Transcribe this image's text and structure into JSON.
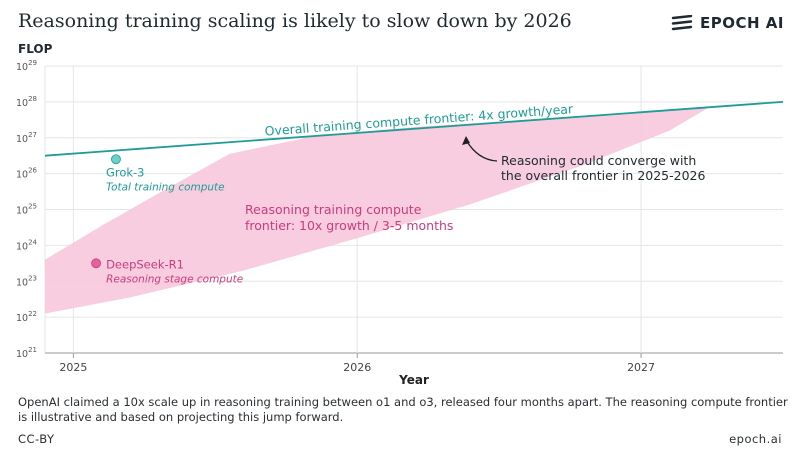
{
  "header": {
    "title": "Reasoning training scaling is likely to slow down by 2026",
    "logo_text": "EPOCH AI"
  },
  "footer": {
    "caption": "OpenAI claimed a 10x scale up in reasoning training between o1 and o3, released four months apart. The reasoning compute frontier is illustrative and based on projecting this jump forward.",
    "license": "CC-BY",
    "site": "epoch.ai"
  },
  "chart_data": {
    "type": "line",
    "title": "Reasoning training scaling is likely to slow down by 2026",
    "xlabel": "Year",
    "ylabel": "FLOP",
    "y_scale": "log",
    "x_range": [
      2024.9,
      2027.5
    ],
    "y_exp_range": [
      21,
      29
    ],
    "x_ticks": [
      2025,
      2026,
      2027
    ],
    "x_tick_labels": [
      "2025",
      "2026",
      "2027"
    ],
    "y_tick_exponents": [
      21,
      22,
      23,
      24,
      25,
      26,
      27,
      28,
      29
    ],
    "y_tick_base": "10",
    "grid": true,
    "colors": {
      "overall": "#1f9c97",
      "reasoning_fill": "#f7c8dc",
      "reasoning_text": "#c93d7d",
      "deepseek_point": "#e6619c",
      "grok_point": "#6ccfc8",
      "grid": "#e6e6e6",
      "axis": "#999999",
      "arrow": "#222222"
    },
    "overall_frontier": {
      "label": "Overall training compute frontier: 4x growth/year",
      "points": [
        [
          2024.9,
          26.5
        ],
        [
          2027.5,
          28.0
        ]
      ]
    },
    "reasoning_frontier": {
      "label_line1": "Reasoning training compute",
      "label_line2": "frontier: 10x growth / 3-5 months",
      "upper": [
        [
          2024.9,
          23.6
        ],
        [
          2025.1,
          24.55
        ],
        [
          2025.3,
          25.45
        ],
        [
          2025.55,
          26.55
        ],
        [
          2025.85,
          27.05
        ],
        [
          2026.2,
          27.3
        ],
        [
          2026.6,
          27.5
        ],
        [
          2027.0,
          27.72
        ],
        [
          2027.24,
          27.85
        ]
      ],
      "lower": [
        [
          2024.9,
          22.1
        ],
        [
          2025.2,
          22.55
        ],
        [
          2025.6,
          23.3
        ],
        [
          2026.0,
          24.2
        ],
        [
          2026.4,
          25.15
        ],
        [
          2026.8,
          26.25
        ],
        [
          2027.1,
          27.2
        ],
        [
          2027.24,
          27.85
        ]
      ]
    },
    "points": [
      {
        "name": "Grok-3",
        "sublabel": "Total training compute",
        "x": 2025.15,
        "y_exp": 26.4
      },
      {
        "name": "DeepSeek-R1",
        "sublabel": "Reasoning stage compute",
        "x": 2025.08,
        "y_exp": 23.5
      }
    ],
    "annotation": {
      "line1": "Reasoning could converge with",
      "line2": "the overall frontier in 2025-2026"
    }
  }
}
